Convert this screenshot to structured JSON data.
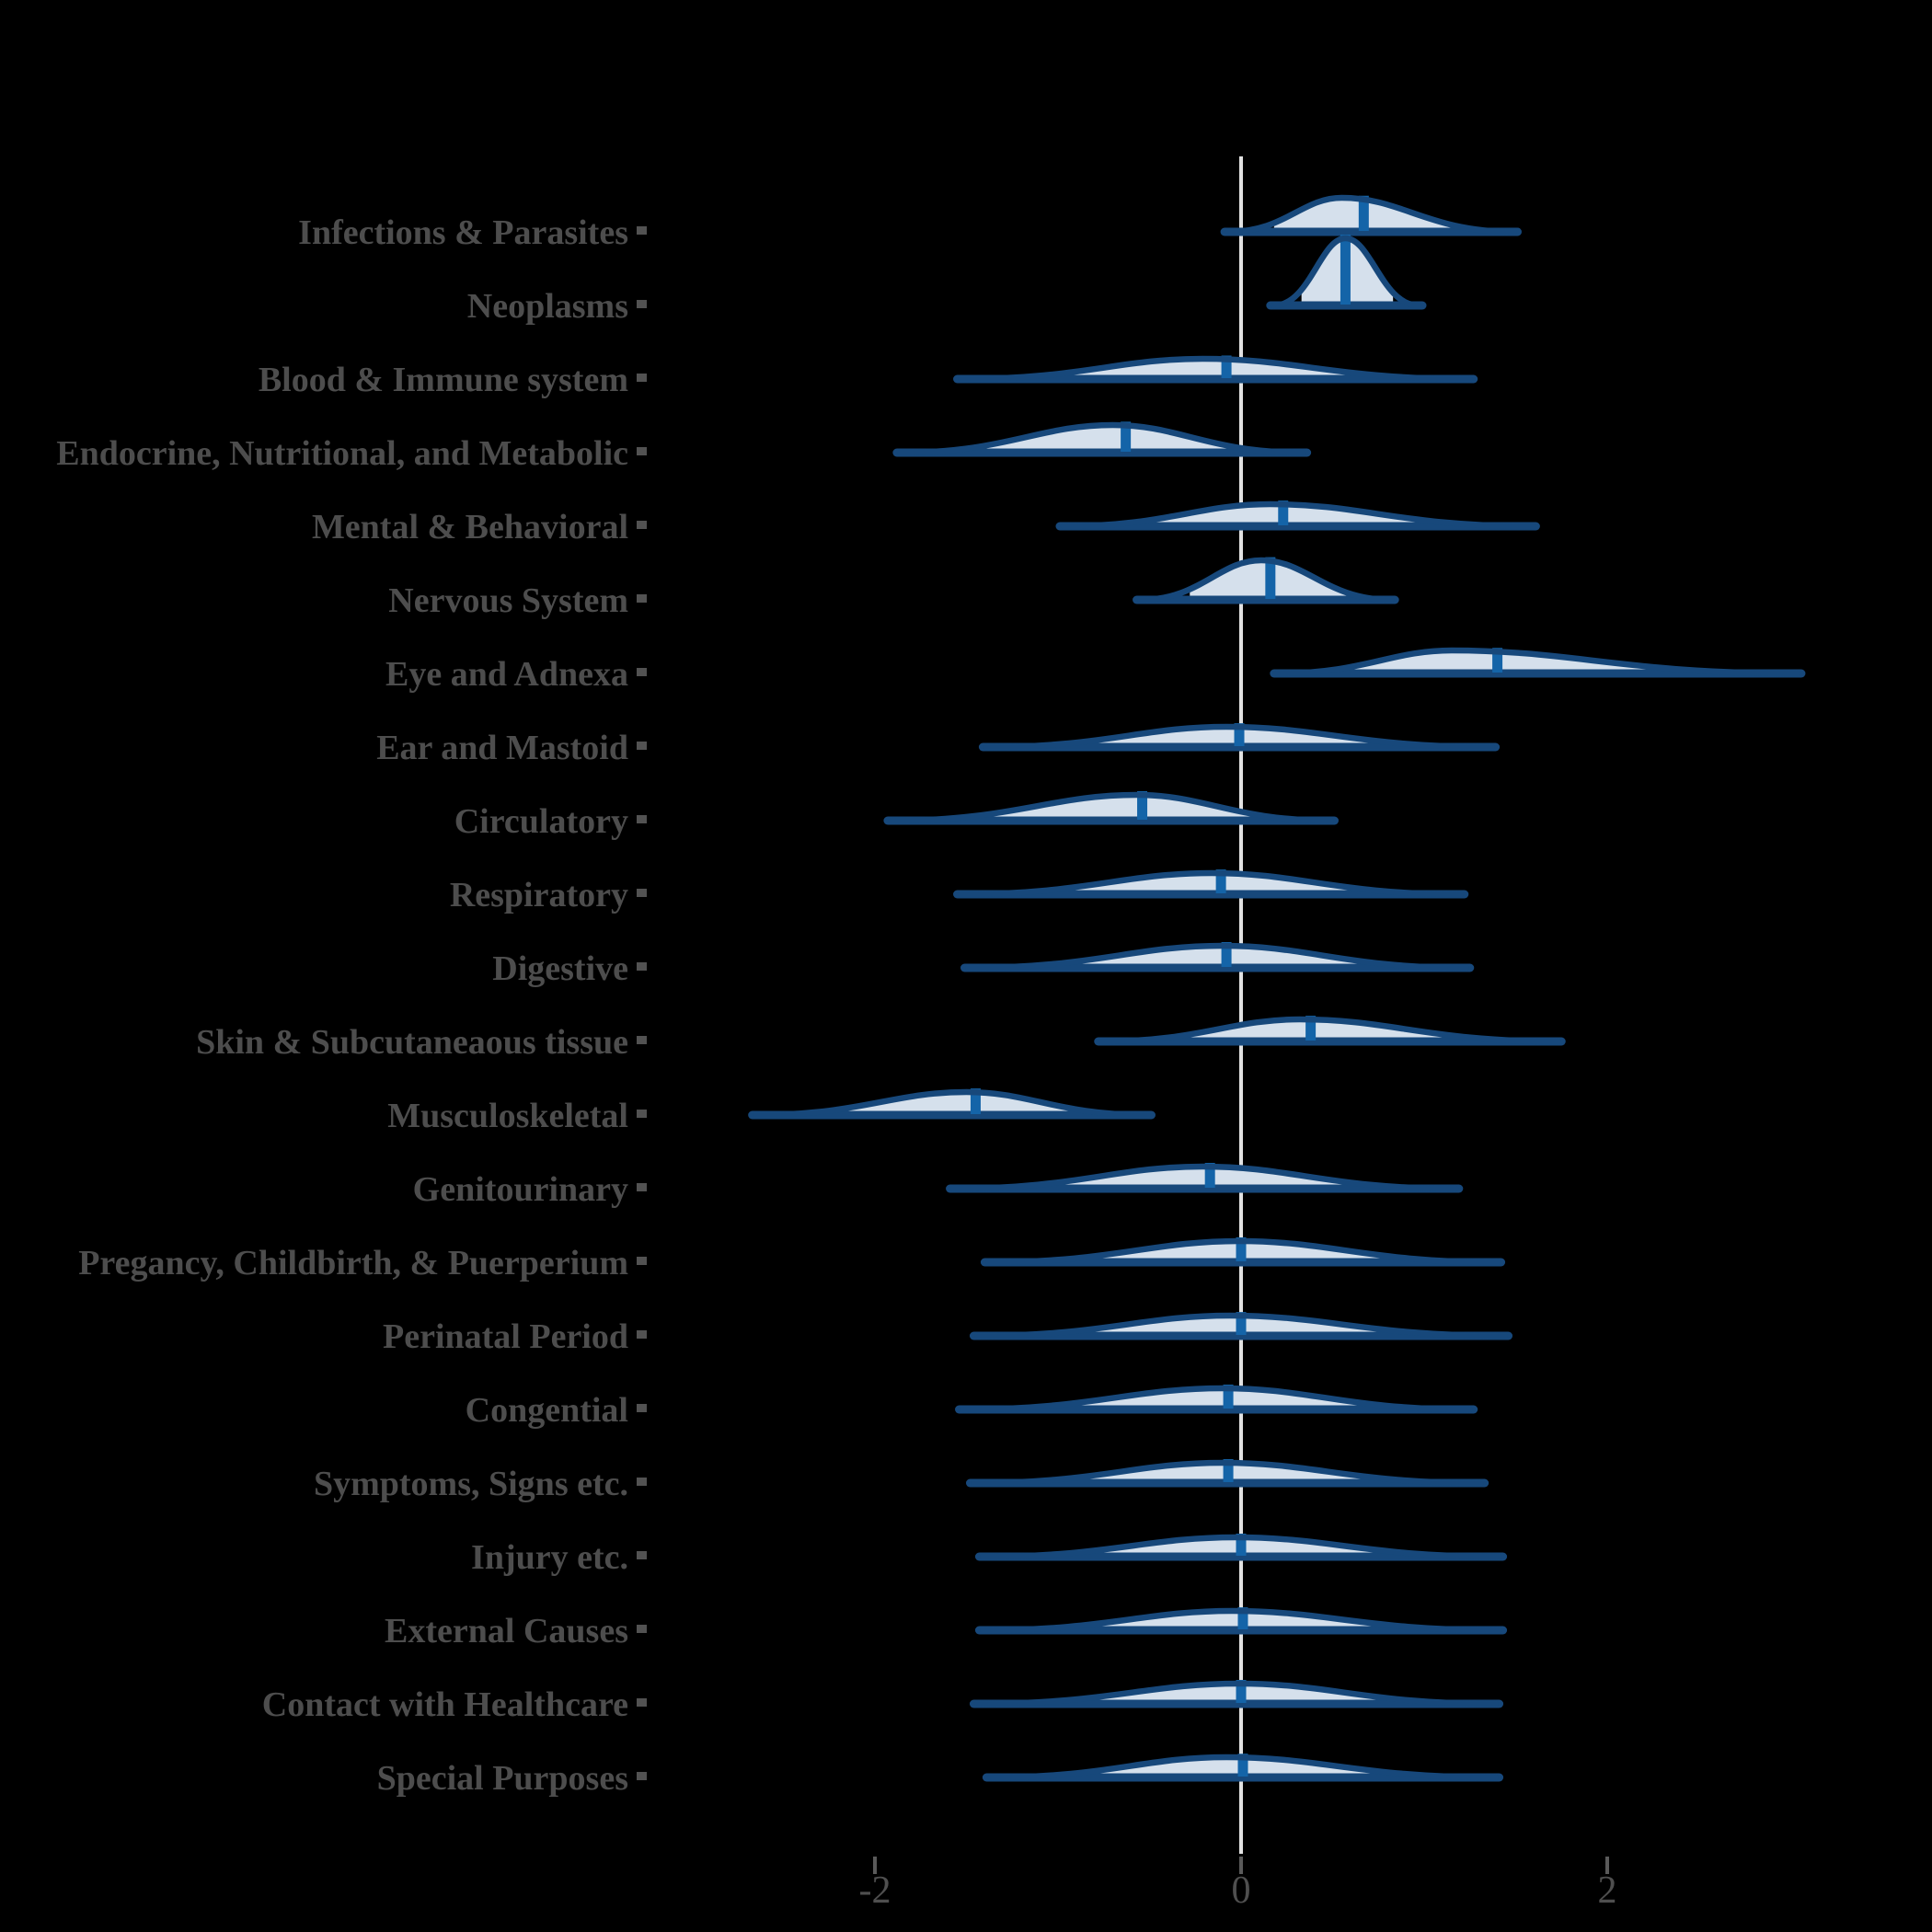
{
  "page": {
    "background": "#000000"
  },
  "colors": {
    "outline": "#17487b",
    "interval_fill": "#d5e0ec",
    "median_bar": "#1464a8",
    "zero_line": "#e2e2e2",
    "category_label": "#4d4d4d",
    "axis_tick": "#5a5a5a",
    "axis_tick_label": "#4f4f4f",
    "y_marker": "#525252"
  },
  "chart_data": {
    "type": "area",
    "subtype": "horizontal-ridgeline-half-violin-densities",
    "title": "",
    "xlabel": "",
    "ylabel": "",
    "grid": false,
    "legend": false,
    "x_axis": {
      "ticks": [
        -2,
        0,
        2
      ],
      "tick_labels": [
        "-2",
        "0",
        "2"
      ],
      "range": [
        -3.3,
        3.8
      ],
      "zero_reference_line": true
    },
    "categories": [
      "Infections & Parasites",
      "Neoplasms",
      "Blood & Immune system",
      "Endocrine, Nutritional, and Metabolic",
      "Mental & Behavioral",
      "Nervous System",
      "Eye and Adnexa",
      "Ear and Mastoid",
      "Circulatory",
      "Respiratory",
      "Digestive",
      "Skin & Subcutaneaous tissue",
      "Musculoskeletal",
      "Genitourinary",
      "Pregancy, Childbirth, & Puerperium",
      "Perinatal Period",
      "Congential",
      "Symptoms, Signs etc.",
      "Injury etc.",
      "External Causes",
      "Contact with Healthcare",
      "Special Purposes"
    ],
    "series": [
      {
        "label": "Infections & Parasites",
        "median": 0.67,
        "interval": [
          0.18,
          1.2
        ],
        "curve": [
          -0.07,
          1.49
        ],
        "peak": 0.55,
        "height": 37
      },
      {
        "label": "Neoplasms",
        "median": 0.57,
        "interval": [
          0.33,
          0.83
        ],
        "curve": [
          0.18,
          0.97
        ],
        "peak": 0.57,
        "height": 73
      },
      {
        "label": "Blood & Immune system",
        "median": -0.08,
        "interval": [
          -0.95,
          0.75
        ],
        "curve": [
          -1.53,
          1.25
        ],
        "peak": -0.21,
        "height": 22
      },
      {
        "label": "Endocrine, Nutritional, and Metabolic",
        "median": -0.63,
        "interval": [
          -1.39,
          0.0
        ],
        "curve": [
          -1.86,
          0.34
        ],
        "peak": -0.7,
        "height": 30
      },
      {
        "label": "Mental & Behavioral",
        "median": 0.23,
        "interval": [
          -0.53,
          1.05
        ],
        "curve": [
          -0.97,
          1.59
        ],
        "peak": 0.16,
        "height": 24
      },
      {
        "label": "Nervous System",
        "median": 0.16,
        "interval": [
          -0.28,
          0.58
        ],
        "curve": [
          -0.55,
          0.82
        ],
        "peak": 0.11,
        "height": 43
      },
      {
        "label": "Eye and Adnexa",
        "median": 1.4,
        "interval": [
          0.58,
          2.46
        ],
        "curve": [
          0.2,
          3.04
        ],
        "peak": 1.15,
        "height": 25
      },
      {
        "label": "Ear and Mastoid",
        "median": -0.01,
        "interval": [
          -0.85,
          0.85
        ],
        "curve": [
          -1.39,
          1.37
        ],
        "peak": -0.08,
        "height": 22
      },
      {
        "label": "Circulatory",
        "median": -0.54,
        "interval": [
          -1.39,
          0.15
        ],
        "curve": [
          -1.91,
          0.49
        ],
        "peak": -0.57,
        "height": 28
      },
      {
        "label": "Respiratory",
        "median": -0.11,
        "interval": [
          -0.99,
          0.74
        ],
        "curve": [
          -1.53,
          1.2
        ],
        "peak": -0.16,
        "height": 23
      },
      {
        "label": "Digestive",
        "median": -0.08,
        "interval": [
          -0.94,
          0.79
        ],
        "curve": [
          -1.49,
          1.23
        ],
        "peak": -0.1,
        "height": 24
      },
      {
        "label": "Skin & Subcutaneaous tissue",
        "median": 0.38,
        "interval": [
          -0.36,
          1.2
        ],
        "curve": [
          -0.76,
          1.73
        ],
        "peak": 0.32,
        "height": 24
      },
      {
        "label": "Musculoskeletal",
        "median": -1.45,
        "interval": [
          -2.2,
          -0.8
        ],
        "curve": [
          -2.65,
          -0.51
        ],
        "peak": -1.5,
        "height": 25
      },
      {
        "label": "Genitourinary",
        "median": -0.17,
        "interval": [
          -1.01,
          0.66
        ],
        "curve": [
          -1.57,
          1.17
        ],
        "peak": -0.21,
        "height": 24
      },
      {
        "label": "Pregancy, Childbirth, & Puerperium",
        "median": 0.0,
        "interval": [
          -0.85,
          0.84
        ],
        "curve": [
          -1.38,
          1.4
        ],
        "peak": -0.01,
        "height": 23
      },
      {
        "label": "Perinatal Period",
        "median": 0.0,
        "interval": [
          -0.87,
          0.88
        ],
        "curve": [
          -1.44,
          1.44
        ],
        "peak": -0.06,
        "height": 22
      },
      {
        "label": "Congential",
        "median": -0.07,
        "interval": [
          -0.94,
          0.73
        ],
        "curve": [
          -1.52,
          1.25
        ],
        "peak": -0.1,
        "height": 23
      },
      {
        "label": "Symptoms, Signs etc.",
        "median": -0.07,
        "interval": [
          -0.91,
          0.74
        ],
        "curve": [
          -1.46,
          1.31
        ],
        "peak": -0.1,
        "height": 22
      },
      {
        "label": "Injury etc.",
        "median": 0.0,
        "interval": [
          -0.87,
          0.84
        ],
        "curve": [
          -1.41,
          1.41
        ],
        "peak": -0.03,
        "height": 21
      },
      {
        "label": "External Causes",
        "median": 0.01,
        "interval": [
          -0.89,
          0.85
        ],
        "curve": [
          -1.41,
          1.41
        ],
        "peak": -0.05,
        "height": 21
      },
      {
        "label": "Contact with Healthcare",
        "median": 0.0,
        "interval": [
          -0.87,
          0.87
        ],
        "curve": [
          -1.44,
          1.39
        ],
        "peak": -0.01,
        "height": 22
      },
      {
        "label": "Special Purposes",
        "median": 0.01,
        "interval": [
          -0.85,
          0.84
        ],
        "curve": [
          -1.37,
          1.39
        ],
        "peak": -0.08,
        "height": 22
      }
    ]
  }
}
